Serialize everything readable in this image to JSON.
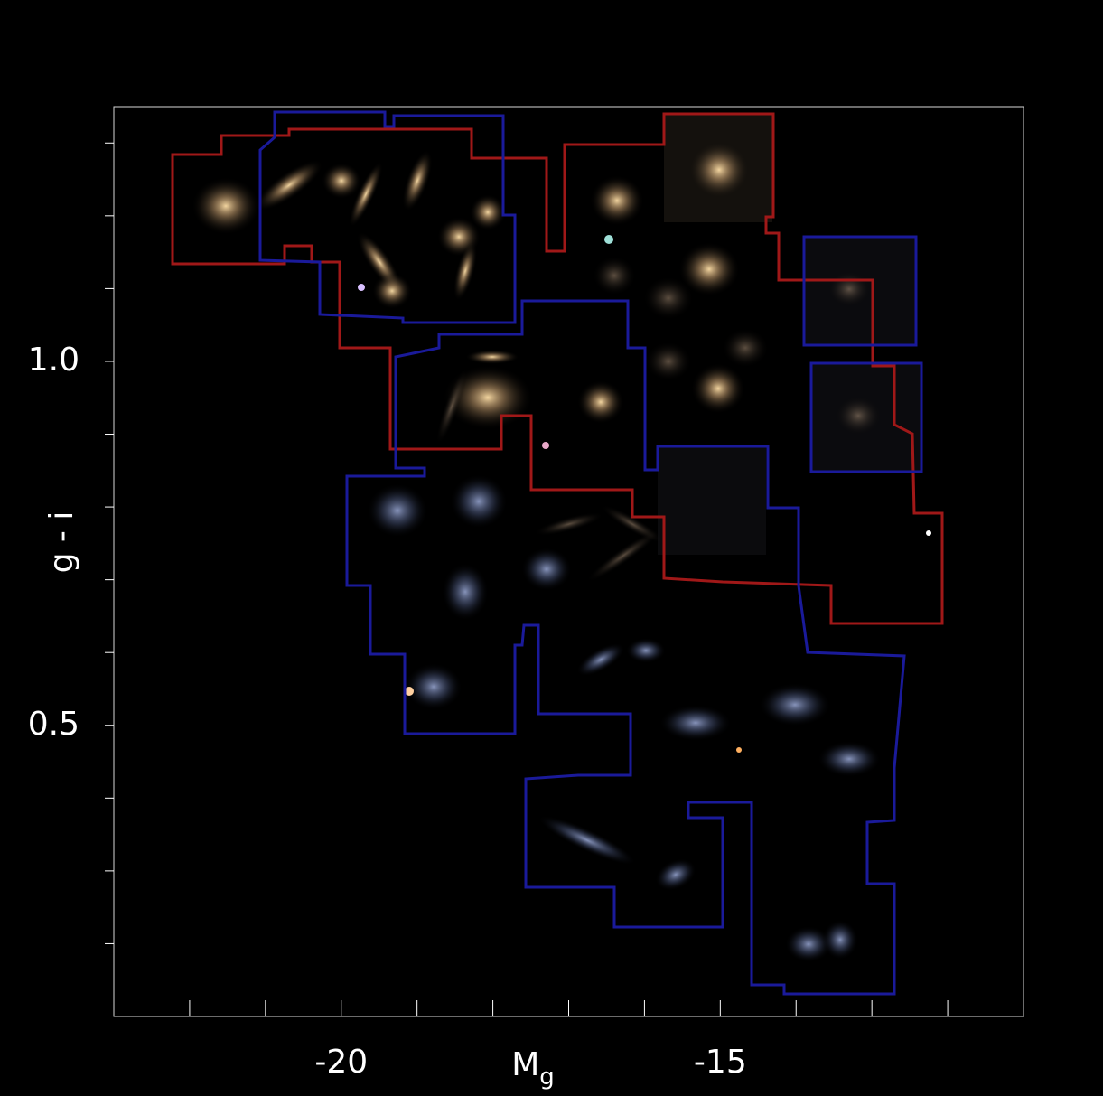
{
  "chart_data": {
    "type": "image-mosaic",
    "xlabel": "M",
    "xlabel_subscript": "g",
    "ylabel": "g - i",
    "xlim": [
      -23,
      -11
    ],
    "xticks": [
      -20,
      -15
    ],
    "xticks_minor": [
      -22,
      -21,
      -19,
      -18,
      -17,
      -16,
      -14,
      -13,
      -12
    ],
    "ylim": [
      0.1,
      1.35
    ],
    "yticks": [
      {
        "value": 1.0,
        "label": "1.0"
      },
      {
        "value": 0.5,
        "label": "0.5"
      }
    ],
    "yticks_minor": [
      1.3,
      1.2,
      1.1,
      0.9,
      0.8,
      0.7,
      0.6,
      0.4,
      0.3,
      0.2
    ],
    "color": "#ffffff"
  }
}
